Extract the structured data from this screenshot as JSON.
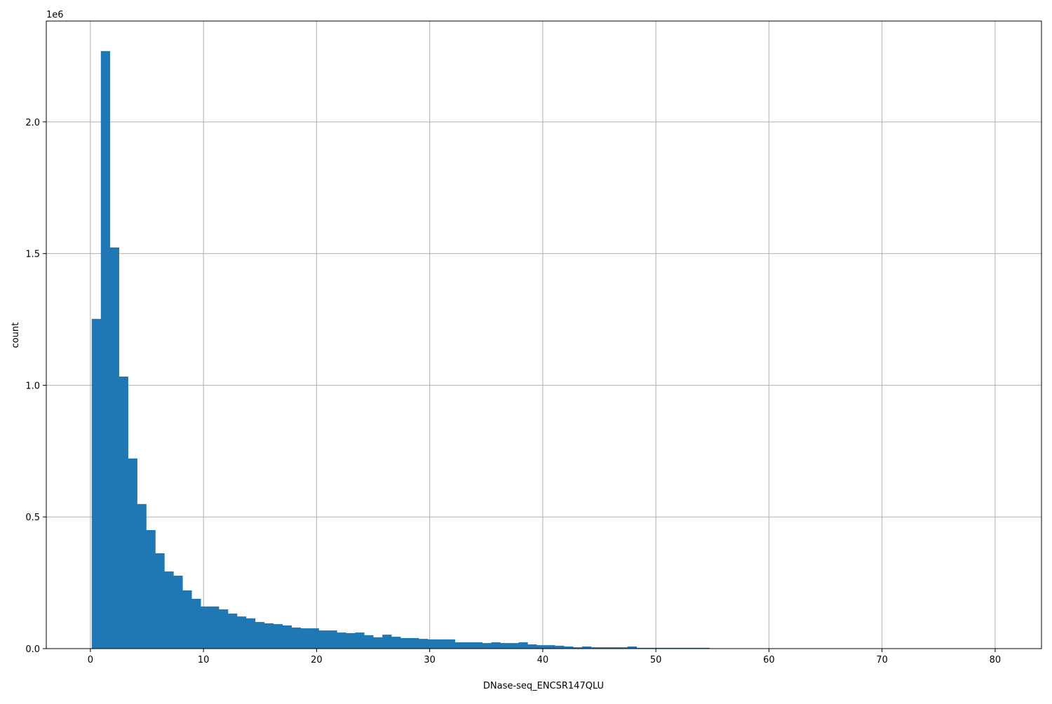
{
  "chart_data": {
    "type": "bar",
    "subtype": "histogram",
    "title": "",
    "xlabel": "DNase-seq_ENCSR147QLU",
    "ylabel": "count",
    "y_offset_label": "1e6",
    "xlim": [
      -3.9,
      84.1
    ],
    "ylim": [
      0,
      2383000
    ],
    "x_ticks": [
      0,
      10,
      20,
      30,
      40,
      50,
      60,
      70,
      80
    ],
    "x_tick_labels": [
      "0",
      "10",
      "20",
      "30",
      "40",
      "50",
      "60",
      "70",
      "80"
    ],
    "y_ticks": [
      0,
      500000,
      1000000,
      1500000,
      2000000
    ],
    "y_tick_labels": [
      "0.0",
      "0.5",
      "1.0",
      "1.5",
      "2.0"
    ],
    "grid": true,
    "bar_color": "#1f77b4",
    "bin_start": 0.12,
    "bin_width": 0.803,
    "values": [
      1252000,
      2269000,
      1523000,
      1033000,
      722000,
      549000,
      450000,
      362000,
      293000,
      277000,
      221000,
      189000,
      160000,
      160000,
      149000,
      133000,
      122000,
      115000,
      101000,
      96000,
      93000,
      88000,
      80000,
      77000,
      77000,
      69000,
      69000,
      61000,
      59000,
      61000,
      51000,
      43000,
      53000,
      45000,
      40000,
      40000,
      37000,
      35000,
      35000,
      35000,
      24000,
      24000,
      24000,
      21000,
      24000,
      21000,
      21000,
      24000,
      16000,
      13000,
      13000,
      11000,
      8000,
      5000,
      8000,
      5000,
      5000,
      5000,
      5000,
      8000,
      3000,
      3000,
      3000,
      3000,
      3000,
      3000,
      3000,
      3000,
      1000,
      1000,
      800,
      700,
      600,
      500,
      500,
      400,
      400,
      300,
      300,
      300,
      200,
      200,
      200,
      200,
      100,
      100,
      100,
      100,
      100,
      100,
      100,
      100,
      50,
      50,
      50,
      50,
      50,
      50,
      50,
      50
    ]
  }
}
